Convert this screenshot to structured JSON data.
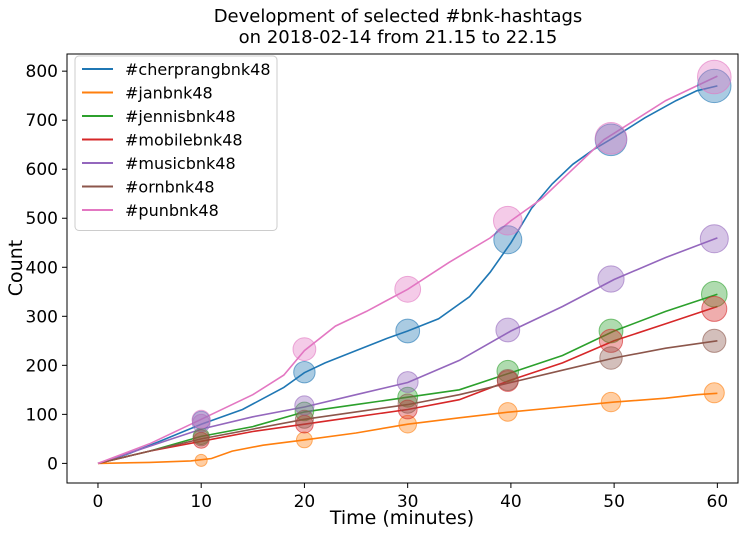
{
  "chart_data": {
    "type": "line",
    "title_line1": "Development of selected #bnk-hashtags",
    "title_line2": "on 2018-02-14 from 21.15 to 22.15",
    "xlabel": "Time (minutes)",
    "ylabel": "Count",
    "xlim": [
      -3,
      62
    ],
    "ylim": [
      -40,
      835
    ],
    "xticks": [
      0,
      10,
      20,
      30,
      40,
      50,
      60
    ],
    "yticks": [
      0,
      100,
      200,
      300,
      400,
      500,
      600,
      700,
      800
    ],
    "grid": false,
    "legend_position": "top-left",
    "series": [
      {
        "name": "#cherprangbnk48",
        "color": "#1f77b4",
        "points": [
          [
            0,
            0
          ],
          [
            3,
            20
          ],
          [
            6,
            45
          ],
          [
            10,
            80
          ],
          [
            14,
            110
          ],
          [
            18,
            155
          ],
          [
            20,
            185
          ],
          [
            22,
            205
          ],
          [
            25,
            230
          ],
          [
            28,
            255
          ],
          [
            30,
            270
          ],
          [
            33,
            295
          ],
          [
            36,
            340
          ],
          [
            38,
            390
          ],
          [
            40,
            450
          ],
          [
            42,
            520
          ],
          [
            44,
            570
          ],
          [
            46,
            610
          ],
          [
            48,
            640
          ],
          [
            50,
            665
          ],
          [
            53,
            705
          ],
          [
            56,
            740
          ],
          [
            58,
            760
          ],
          [
            60,
            770
          ]
        ],
        "markers": [
          {
            "x": 10,
            "y": 88
          },
          {
            "x": 20,
            "y": 186
          },
          {
            "x": 30,
            "y": 270
          },
          {
            "x": 39.7,
            "y": 456
          },
          {
            "x": 49.7,
            "y": 660
          },
          {
            "x": 59.7,
            "y": 770
          }
        ]
      },
      {
        "name": "#janbnk48",
        "color": "#ff7f0e",
        "points": [
          [
            0,
            0
          ],
          [
            5,
            2
          ],
          [
            9,
            5
          ],
          [
            11,
            10
          ],
          [
            13,
            25
          ],
          [
            16,
            37
          ],
          [
            20,
            48
          ],
          [
            25,
            62
          ],
          [
            30,
            80
          ],
          [
            35,
            93
          ],
          [
            40,
            105
          ],
          [
            45,
            115
          ],
          [
            50,
            125
          ],
          [
            55,
            133
          ],
          [
            58,
            140
          ],
          [
            60,
            143
          ]
        ],
        "markers": [
          {
            "x": 10,
            "y": 6
          },
          {
            "x": 20,
            "y": 48
          },
          {
            "x": 30,
            "y": 80
          },
          {
            "x": 39.7,
            "y": 105
          },
          {
            "x": 49.7,
            "y": 125
          },
          {
            "x": 59.7,
            "y": 144
          }
        ]
      },
      {
        "name": "#jennisbnk48",
        "color": "#2ca02c",
        "points": [
          [
            0,
            0
          ],
          [
            5,
            25
          ],
          [
            10,
            55
          ],
          [
            15,
            75
          ],
          [
            20,
            105
          ],
          [
            25,
            120
          ],
          [
            30,
            135
          ],
          [
            35,
            150
          ],
          [
            40,
            185
          ],
          [
            45,
            220
          ],
          [
            50,
            270
          ],
          [
            55,
            310
          ],
          [
            60,
            345
          ]
        ],
        "markers": [
          {
            "x": 10,
            "y": 55
          },
          {
            "x": 20,
            "y": 106
          },
          {
            "x": 30,
            "y": 135
          },
          {
            "x": 39.7,
            "y": 188
          },
          {
            "x": 49.7,
            "y": 270
          },
          {
            "x": 59.7,
            "y": 345
          }
        ]
      },
      {
        "name": "#mobilebnk48",
        "color": "#d62728",
        "points": [
          [
            0,
            0
          ],
          [
            5,
            25
          ],
          [
            10,
            45
          ],
          [
            15,
            65
          ],
          [
            20,
            80
          ],
          [
            25,
            95
          ],
          [
            30,
            110
          ],
          [
            35,
            130
          ],
          [
            40,
            170
          ],
          [
            45,
            205
          ],
          [
            50,
            250
          ],
          [
            55,
            285
          ],
          [
            60,
            320
          ]
        ],
        "markers": [
          {
            "x": 10,
            "y": 47
          },
          {
            "x": 20,
            "y": 80
          },
          {
            "x": 30,
            "y": 110
          },
          {
            "x": 39.7,
            "y": 168
          },
          {
            "x": 49.7,
            "y": 250
          },
          {
            "x": 59.7,
            "y": 315
          }
        ]
      },
      {
        "name": "#musicbnk48",
        "color": "#9467bd",
        "points": [
          [
            0,
            0
          ],
          [
            5,
            35
          ],
          [
            10,
            70
          ],
          [
            15,
            95
          ],
          [
            20,
            115
          ],
          [
            25,
            140
          ],
          [
            30,
            165
          ],
          [
            35,
            210
          ],
          [
            40,
            270
          ],
          [
            45,
            320
          ],
          [
            50,
            375
          ],
          [
            55,
            420
          ],
          [
            60,
            460
          ]
        ],
        "markers": [
          {
            "x": 10,
            "y": 82
          },
          {
            "x": 20,
            "y": 118
          },
          {
            "x": 30,
            "y": 166
          },
          {
            "x": 39.7,
            "y": 272
          },
          {
            "x": 49.7,
            "y": 376
          },
          {
            "x": 59.7,
            "y": 458
          }
        ]
      },
      {
        "name": "#ornbnk48",
        "color": "#8c564b",
        "points": [
          [
            0,
            0
          ],
          [
            5,
            25
          ],
          [
            10,
            50
          ],
          [
            15,
            70
          ],
          [
            20,
            90
          ],
          [
            25,
            105
          ],
          [
            30,
            120
          ],
          [
            35,
            140
          ],
          [
            40,
            165
          ],
          [
            45,
            190
          ],
          [
            50,
            215
          ],
          [
            55,
            235
          ],
          [
            60,
            250
          ]
        ],
        "markers": [
          {
            "x": 10,
            "y": 52
          },
          {
            "x": 20,
            "y": 90
          },
          {
            "x": 30,
            "y": 122
          },
          {
            "x": 39.7,
            "y": 170
          },
          {
            "x": 49.7,
            "y": 215
          },
          {
            "x": 59.7,
            "y": 250
          }
        ]
      },
      {
        "name": "#punbnk48",
        "color": "#e377c2",
        "points": [
          [
            0,
            0
          ],
          [
            5,
            40
          ],
          [
            10,
            90
          ],
          [
            15,
            140
          ],
          [
            18,
            180
          ],
          [
            20,
            230
          ],
          [
            23,
            280
          ],
          [
            26,
            310
          ],
          [
            30,
            355
          ],
          [
            34,
            410
          ],
          [
            38,
            460
          ],
          [
            40,
            495
          ],
          [
            43,
            540
          ],
          [
            46,
            600
          ],
          [
            49,
            660
          ],
          [
            52,
            700
          ],
          [
            55,
            740
          ],
          [
            58,
            770
          ],
          [
            60,
            790
          ]
        ],
        "markers": [
          {
            "x": 10,
            "y": 90
          },
          {
            "x": 20,
            "y": 233
          },
          {
            "x": 30,
            "y": 355
          },
          {
            "x": 39.7,
            "y": 495
          },
          {
            "x": 49.7,
            "y": 663
          },
          {
            "x": 59.7,
            "y": 788
          }
        ]
      }
    ]
  }
}
